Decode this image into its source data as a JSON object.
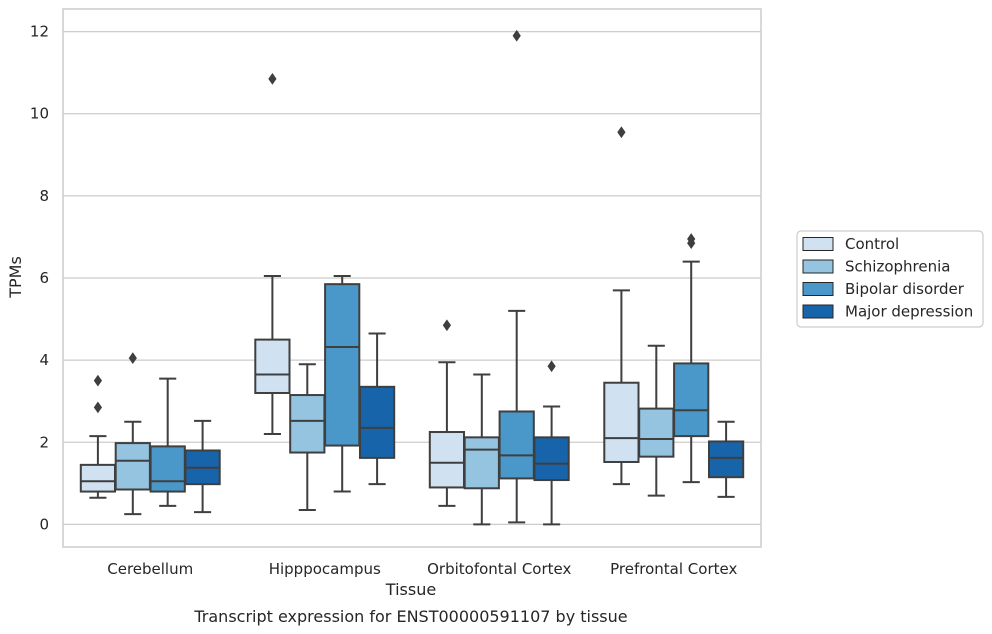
{
  "chart_data": {
    "type": "box",
    "xlabel": "Tissue",
    "ylabel": "TPMs",
    "caption": "Transcript expression for ENST00000591107 by tissue",
    "ylim": [
      -0.55,
      12.55
    ],
    "yticks": [
      0,
      2,
      4,
      6,
      8,
      10,
      12
    ],
    "grid": true,
    "legend_position": "right",
    "categories": [
      "Cerebellum",
      "Hipppocampus",
      "Orbitofontal Cortex",
      "Prefrontal Cortex"
    ],
    "series": [
      {
        "name": "Control",
        "color": "#d0e1f2",
        "boxes": [
          {
            "whislo": 0.65,
            "q1": 0.8,
            "med": 1.05,
            "q3": 1.45,
            "whishi": 2.15,
            "fliers": [
              2.85,
              3.5
            ]
          },
          {
            "whislo": 2.2,
            "q1": 3.2,
            "med": 3.65,
            "q3": 4.5,
            "whishi": 6.05,
            "fliers": [
              10.85
            ]
          },
          {
            "whislo": 0.45,
            "q1": 0.9,
            "med": 1.5,
            "q3": 2.25,
            "whishi": 3.95,
            "fliers": [
              4.85
            ]
          },
          {
            "whislo": 0.98,
            "q1": 1.52,
            "med": 2.1,
            "q3": 3.45,
            "whishi": 5.7,
            "fliers": [
              9.55
            ]
          }
        ]
      },
      {
        "name": "Schizophrenia",
        "color": "#94c4df",
        "boxes": [
          {
            "whislo": 0.25,
            "q1": 0.85,
            "med": 1.55,
            "q3": 1.98,
            "whishi": 2.5,
            "fliers": [
              4.05
            ]
          },
          {
            "whislo": 0.35,
            "q1": 1.75,
            "med": 2.52,
            "q3": 3.15,
            "whishi": 3.9,
            "fliers": []
          },
          {
            "whislo": 0.0,
            "q1": 0.88,
            "med": 1.82,
            "q3": 2.12,
            "whishi": 3.65,
            "fliers": []
          },
          {
            "whislo": 0.7,
            "q1": 1.65,
            "med": 2.08,
            "q3": 2.82,
            "whishi": 4.35,
            "fliers": []
          }
        ]
      },
      {
        "name": "Bipolar disorder",
        "color": "#4a98c9",
        "boxes": [
          {
            "whislo": 0.45,
            "q1": 0.8,
            "med": 1.05,
            "q3": 1.9,
            "whishi": 3.55,
            "fliers": []
          },
          {
            "whislo": 0.8,
            "q1": 1.92,
            "med": 4.32,
            "q3": 5.85,
            "whishi": 6.05,
            "fliers": []
          },
          {
            "whislo": 0.05,
            "q1": 1.12,
            "med": 1.68,
            "q3": 2.75,
            "whishi": 5.2,
            "fliers": [
              11.9
            ]
          },
          {
            "whislo": 1.03,
            "q1": 2.15,
            "med": 2.78,
            "q3": 3.92,
            "whishi": 6.4,
            "fliers": [
              6.85,
              6.95
            ]
          }
        ]
      },
      {
        "name": "Major depression",
        "color": "#1764ab",
        "boxes": [
          {
            "whislo": 0.3,
            "q1": 0.98,
            "med": 1.38,
            "q3": 1.8,
            "whishi": 2.52,
            "fliers": []
          },
          {
            "whislo": 0.98,
            "q1": 1.62,
            "med": 2.35,
            "q3": 3.35,
            "whishi": 4.65,
            "fliers": []
          },
          {
            "whislo": 0.0,
            "q1": 1.08,
            "med": 1.48,
            "q3": 2.12,
            "whishi": 2.87,
            "fliers": [
              3.85
            ]
          },
          {
            "whislo": 0.67,
            "q1": 1.15,
            "med": 1.62,
            "q3": 2.02,
            "whishi": 2.5,
            "fliers": []
          }
        ]
      }
    ]
  }
}
